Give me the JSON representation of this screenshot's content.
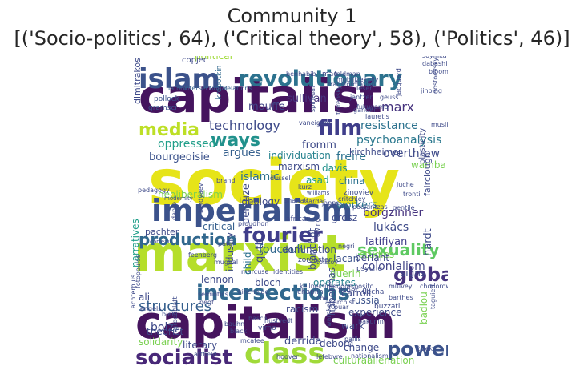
{
  "title": "Community 1",
  "subtitle": "[('Socio-politics', 64), ('Critical theory', 58), ('Politics', 46)]",
  "colors": {
    "dark_purple": "#45145e",
    "indigo": "#3f3d8a",
    "blue": "#355f8d",
    "teal": "#26828e",
    "green": "#29a872",
    "lime": "#8fd744",
    "yellow": "#e6e419"
  },
  "words": [
    {
      "text": "society",
      "color": "#e6e419"
    },
    {
      "text": "capitalist",
      "color": "#45145e"
    },
    {
      "text": "marxist",
      "color": "#b5de2b"
    },
    {
      "text": "capitalism",
      "color": "#45145e"
    },
    {
      "text": "imperialism",
      "color": "#3b528b"
    },
    {
      "text": "islam",
      "color": "#3b528b"
    },
    {
      "text": "revolutionary",
      "color": "#2c728e"
    },
    {
      "text": "class",
      "color": "#a0da39"
    },
    {
      "text": "film",
      "color": "#3f3d8a"
    },
    {
      "text": "intersections",
      "color": "#31688e"
    },
    {
      "text": "global",
      "color": "#46337e"
    },
    {
      "text": "fourier",
      "color": "#3f3d8a"
    },
    {
      "text": "socialist",
      "color": "#482878"
    },
    {
      "text": "power",
      "color": "#3b528b"
    },
    {
      "text": "media",
      "color": "#bddf26"
    },
    {
      "text": "production",
      "color": "#31688e"
    },
    {
      "text": "ways",
      "color": "#21918c"
    },
    {
      "text": "sexuality",
      "color": "#5ec962"
    },
    {
      "text": "structures",
      "color": "#355f8d"
    },
    {
      "text": "technology",
      "color": "#3e4a89"
    },
    {
      "text": "marx",
      "color": "#46337e"
    },
    {
      "text": "psychoanalysis",
      "color": "#2a788e"
    },
    {
      "text": "resistance",
      "color": "#2c728e"
    },
    {
      "text": "islamic",
      "color": "#2d708e"
    },
    {
      "text": "overthrow",
      "color": "#3e4a89"
    },
    {
      "text": "colonialism",
      "color": "#414487"
    },
    {
      "text": "latifiyan",
      "color": "#3f3d8a"
    },
    {
      "text": "borgzinner",
      "color": "#46337e"
    },
    {
      "text": "lukács",
      "color": "#3e4a89"
    },
    {
      "text": "foucault",
      "color": "#31688e"
    },
    {
      "text": "deleuze",
      "color": "#3e4a89"
    },
    {
      "text": "freire",
      "color": "#2c728e"
    },
    {
      "text": "oppressed",
      "color": "#1f9e89"
    },
    {
      "text": "bourgeoisie",
      "color": "#3b528b"
    },
    {
      "text": "argues",
      "color": "#355f8d"
    },
    {
      "text": "ideology",
      "color": "#3e4a89"
    },
    {
      "text": "marxism",
      "color": "#3e4a89"
    },
    {
      "text": "davis",
      "color": "#21918c"
    },
    {
      "text": "fromm",
      "color": "#3e4a89"
    },
    {
      "text": "kirchheimer",
      "color": "#3e4a89"
    },
    {
      "text": "wamba",
      "color": "#7ad151"
    },
    {
      "text": "china",
      "color": "#2c728e"
    },
    {
      "text": "asad",
      "color": "#1f9e89"
    },
    {
      "text": "individuation",
      "color": "#26828e"
    },
    {
      "text": "sullivan",
      "color": "#46337e"
    },
    {
      "text": "mouffe",
      "color": "#414487"
    },
    {
      "text": "political",
      "color": "#a0da39"
    },
    {
      "text": "copjec",
      "color": "#3e4a89"
    },
    {
      "text": "dimitrakos",
      "color": "#3e4a89"
    },
    {
      "text": "kropotkin",
      "color": "#31688e"
    },
    {
      "text": "pollock",
      "color": "#3b528b"
    },
    {
      "text": "gramsci",
      "color": "#3b528b"
    },
    {
      "text": "latour",
      "color": "#355f8d"
    },
    {
      "text": "intersectional",
      "color": "#355f8d"
    },
    {
      "text": "relations",
      "color": "#355f8d"
    },
    {
      "text": "vaneigem",
      "color": "#3e4a89"
    },
    {
      "text": "leser",
      "color": "#3e4a89"
    },
    {
      "text": "jantzen",
      "color": "#3e4a89"
    },
    {
      "text": "fukuyama",
      "color": "#3e4a89"
    },
    {
      "text": "geuss",
      "color": "#3e4a89"
    },
    {
      "text": "jacquard",
      "color": "#3e4a89"
    },
    {
      "text": "benhabib",
      "color": "#3e4a89"
    },
    {
      "text": "mao",
      "color": "#3e4a89"
    },
    {
      "text": "feldman",
      "color": "#3e4a89"
    },
    {
      "text": "transformation",
      "color": "#3e4a89"
    },
    {
      "text": "tully",
      "color": "#3e4a89"
    },
    {
      "text": "soyinka",
      "color": "#3e4a89"
    },
    {
      "text": "dabashi",
      "color": "#3e4a89"
    },
    {
      "text": "bloom",
      "color": "#3e4a89"
    },
    {
      "text": "jinping",
      "color": "#3e4a89"
    },
    {
      "text": "muslims",
      "color": "#3e4a89"
    },
    {
      "text": "workers",
      "color": "#2c728e"
    },
    {
      "text": "grosz",
      "color": "#3e4a89"
    },
    {
      "text": "studies",
      "color": "#7ad151"
    },
    {
      "text": "tronti",
      "color": "#3e4a89"
    },
    {
      "text": "critical",
      "color": "#355f8d"
    },
    {
      "text": "domination",
      "color": "#3e4a89"
    },
    {
      "text": "narratives",
      "color": "#1f9e89"
    },
    {
      "text": "neoliberalism",
      "color": "#7ad151"
    },
    {
      "text": "proudhon",
      "color": "#3e4a89"
    },
    {
      "text": "african",
      "color": "#3e4a89"
    },
    {
      "text": "pater",
      "color": "#3e4a89"
    },
    {
      "text": "marcuse",
      "color": "#3e4a89"
    },
    {
      "text": "identities",
      "color": "#3e4a89"
    },
    {
      "text": "tolstoy",
      "color": "#3e4a89"
    },
    {
      "text": "pachter",
      "color": "#3e4a89"
    },
    {
      "text": "corteau",
      "color": "#3e4a89"
    },
    {
      "text": "qutb",
      "color": "#3e4a89"
    },
    {
      "text": "child",
      "color": "#2c728e"
    },
    {
      "text": "lacan",
      "color": "#3b528b"
    },
    {
      "text": "zoroaster",
      "color": "#3e4a89"
    },
    {
      "text": "berlant",
      "color": "#3e4a89"
    },
    {
      "text": "psyche",
      "color": "#3e4a89"
    },
    {
      "text": "guerin",
      "color": "#7ad151"
    },
    {
      "text": "signs",
      "color": "#3e4a89"
    },
    {
      "text": "hardt",
      "color": "#3e4a89"
    },
    {
      "text": "blanchot",
      "color": "#3e4a89"
    },
    {
      "text": "operates",
      "color": "#26828e"
    },
    {
      "text": "fairclough",
      "color": "#3e4a89"
    },
    {
      "text": "plasticity",
      "color": "#3e4a89"
    },
    {
      "text": "industry",
      "color": "#3e4a89"
    },
    {
      "text": "lennon",
      "color": "#3e4a89"
    },
    {
      "text": "bloch",
      "color": "#3e4a89"
    },
    {
      "text": "chaplin",
      "color": "#3e4a89"
    },
    {
      "text": "fisher",
      "color": "#3e4a89"
    },
    {
      "text": "flecha",
      "color": "#3e4a89"
    },
    {
      "text": "ali",
      "color": "#3e4a89"
    },
    {
      "text": "carroll",
      "color": "#3e4a89"
    },
    {
      "text": "russia",
      "color": "#3b528b"
    },
    {
      "text": "racism",
      "color": "#3e4a89"
    },
    {
      "text": "experience",
      "color": "#3e4a89"
    },
    {
      "text": "esposito",
      "color": "#3e4a89"
    },
    {
      "text": "mulvey",
      "color": "#3e4a89"
    },
    {
      "text": "barthes",
      "color": "#3e4a89"
    },
    {
      "text": "anarchist",
      "color": "#3e4a89"
    },
    {
      "text": "kellnersimondon",
      "color": "#3e4a89"
    },
    {
      "text": "semiotics",
      "color": "#3e4a89"
    },
    {
      "text": "negt",
      "color": "#3e4a89"
    },
    {
      "text": "che",
      "color": "#3e4a89"
    },
    {
      "text": "puar",
      "color": "#3e4a89"
    },
    {
      "text": "bolz",
      "color": "#3e4a89"
    },
    {
      "text": "habermas",
      "color": "#3e4a89"
    },
    {
      "text": "wark",
      "color": "#3e4a89"
    },
    {
      "text": "basch",
      "color": "#3e4a89"
    },
    {
      "text": "hustvedt",
      "color": "#3e4a89"
    },
    {
      "text": "virno",
      "color": "#3e4a89"
    },
    {
      "text": "bauhn",
      "color": "#3e4a89"
    },
    {
      "text": "black",
      "color": "#3e4a89"
    },
    {
      "text": "bakunin",
      "color": "#3e4a89"
    },
    {
      "text": "buzzati",
      "color": "#3e4a89"
    },
    {
      "text": "pallis",
      "color": "#3e4a89"
    },
    {
      "text": "theorist",
      "color": "#3e4a89"
    },
    {
      "text": "solidarity",
      "color": "#7ad151"
    },
    {
      "text": "literary",
      "color": "#3e4a89"
    },
    {
      "text": "attfield",
      "color": "#3e4a89"
    },
    {
      "text": "derrida",
      "color": "#3e4a89"
    },
    {
      "text": "debord",
      "color": "#3e4a89"
    },
    {
      "text": "change",
      "color": "#3e4a89"
    },
    {
      "text": "cultural",
      "color": "#7ad151"
    },
    {
      "text": "alienation",
      "color": "#7ad151"
    },
    {
      "text": "badiou",
      "color": "#7ad151"
    },
    {
      "text": "hoover",
      "color": "#3e4a89"
    },
    {
      "text": "lefebvre",
      "color": "#3e4a89"
    },
    {
      "text": "nationalism",
      "color": "#3e4a89"
    },
    {
      "text": "žižek",
      "color": "#3e4a89"
    },
    {
      "text": "zinoviev",
      "color": "#3e4a89"
    },
    {
      "text": "critchley",
      "color": "#3e4a89"
    },
    {
      "text": "poulantzas",
      "color": "#3e4a89"
    },
    {
      "text": "jappe",
      "color": "#3e4a89"
    },
    {
      "text": "sardar",
      "color": "#3e4a89"
    },
    {
      "text": "kurz",
      "color": "#3e4a89"
    },
    {
      "text": "shariati",
      "color": "#3e4a89"
    },
    {
      "text": "williams",
      "color": "#3e4a89"
    },
    {
      "text": "juche",
      "color": "#3e4a89"
    },
    {
      "text": "modernity",
      "color": "#3e4a89"
    },
    {
      "text": "pedagogy",
      "color": "#3e4a89"
    },
    {
      "text": "danto",
      "color": "#3e4a89"
    },
    {
      "text": "feenberg",
      "color": "#3e4a89"
    },
    {
      "text": "achterhuis",
      "color": "#3e4a89"
    },
    {
      "text": "engels",
      "color": "#3e4a89"
    },
    {
      "text": "biehl",
      "color": "#3e4a89"
    },
    {
      "text": "greenblatt",
      "color": "#3e4a89"
    },
    {
      "text": "taguieff",
      "color": "#3e4a89"
    },
    {
      "text": "chodorow",
      "color": "#3e4a89"
    },
    {
      "text": "brandl",
      "color": "#3e4a89"
    },
    {
      "text": "dussel",
      "color": "#3e4a89"
    },
    {
      "text": "gentile",
      "color": "#3e4a89"
    },
    {
      "text": "gandhi",
      "color": "#3e4a89"
    },
    {
      "text": "lauretis",
      "color": "#3e4a89"
    },
    {
      "text": "florensky",
      "color": "#3e4a89"
    },
    {
      "text": "spiritual",
      "color": "#3e4a89"
    },
    {
      "text": "mobilize",
      "color": "#3e4a89"
    },
    {
      "text": "kincheloe",
      "color": "#3e4a89"
    },
    {
      "text": "mcafee",
      "color": "#3e4a89"
    },
    {
      "text": "mughal",
      "color": "#3e4a89"
    },
    {
      "text": "fotopoulos",
      "color": "#3e4a89"
    },
    {
      "text": "berdyaev",
      "color": "#3e4a89"
    },
    {
      "text": "warnke",
      "color": "#3e4a89"
    },
    {
      "text": "dostoevsky",
      "color": "#3e4a89"
    },
    {
      "text": "negri",
      "color": "#3e4a89"
    },
    {
      "text": "ewing",
      "color": "#3e4a89"
    }
  ]
}
